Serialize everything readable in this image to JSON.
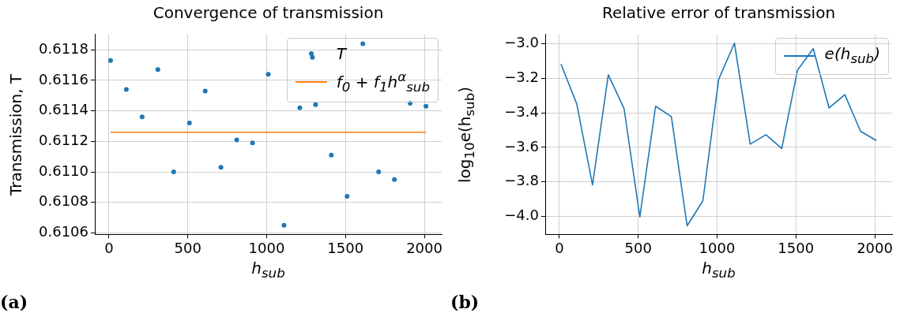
{
  "chart_data": [
    {
      "type": "scatter",
      "title": "Convergence of transmission",
      "xlabel": "h$_{sub}$",
      "ylabel": "Transmission, T",
      "annotations": [
        "(a)"
      ],
      "marker": "circle",
      "legend": "top right",
      "grid": true,
      "xlim": [
        -90,
        2110
      ],
      "ylim": [
        0.61059,
        0.6119
      ],
      "xticks": [
        0,
        500,
        1000,
        1500,
        2000
      ],
      "yticks": [
        0.6106,
        0.6108,
        {
          "value": 0.611,
          "label": "0.6110"
        },
        0.6112,
        0.6114,
        0.6116,
        0.6118
      ],
      "series": [
        {
          "name": "T",
          "color": "#1f77b4",
          "x": [
            10,
            110,
            210,
            310,
            410,
            510,
            610,
            710,
            810,
            910,
            1010,
            1110,
            1210,
            1290,
            1310,
            1410,
            1510,
            1610,
            1710,
            1810,
            1910,
            2010
          ],
          "values": [
            0.61173,
            0.61154,
            0.61136,
            0.61167,
            0.611,
            0.61132,
            0.61153,
            0.61103,
            0.61121,
            0.61119,
            0.61164,
            0.61065,
            0.61142,
            0.61175,
            0.61144,
            0.61111,
            0.61084,
            0.61184,
            0.611,
            0.61095,
            0.61145,
            0.61143
          ]
        },
        {
          "name": "f$_{0}$ + f$_{1}$h$^{α}$$_{sub}$",
          "type": "line",
          "marker": "none",
          "color": "#ff7f0e",
          "x": [
            10,
            2010
          ],
          "values": [
            0.61126,
            0.61126
          ]
        }
      ]
    },
    {
      "type": "line",
      "title": "Relative error of transmission",
      "xlabel": "h$_{sub}$",
      "ylabel": "log$_{10}$e(h$_{sub}$)",
      "annotations": [
        "(b)"
      ],
      "marker": "none",
      "legend": "top right",
      "grid": true,
      "xlim": [
        -90,
        2110
      ],
      "ylim": [
        -4.105,
        -2.945
      ],
      "xticks": [
        0,
        500,
        1000,
        1500,
        2000
      ],
      "yticks": [
        {
          "value": -4,
          "label": "−4.0"
        },
        {
          "value": -3.8,
          "label": "−3.8"
        },
        {
          "value": -3.6,
          "label": "−3.6"
        },
        {
          "value": -3.4,
          "label": "−3.4"
        },
        {
          "value": -3.2,
          "label": "−3.2"
        },
        {
          "value": -3,
          "label": "−3.0"
        }
      ],
      "series": [
        {
          "name": "e(h$_{sub}$)",
          "color": "#1f77b4",
          "x": [
            10,
            110,
            210,
            310,
            410,
            510,
            610,
            710,
            810,
            910,
            1010,
            1110,
            1210,
            1310,
            1410,
            1510,
            1610,
            1710,
            1810,
            1910,
            2010
          ],
          "values": [
            -3.116,
            -3.348,
            -3.818,
            -3.179,
            -3.374,
            -4.003,
            -3.361,
            -3.421,
            -4.055,
            -3.91,
            -3.205,
            -2.995,
            -3.581,
            -3.526,
            -3.606,
            -3.152,
            -3.027,
            -3.371,
            -3.294,
            -3.506,
            -3.56
          ]
        }
      ]
    }
  ]
}
